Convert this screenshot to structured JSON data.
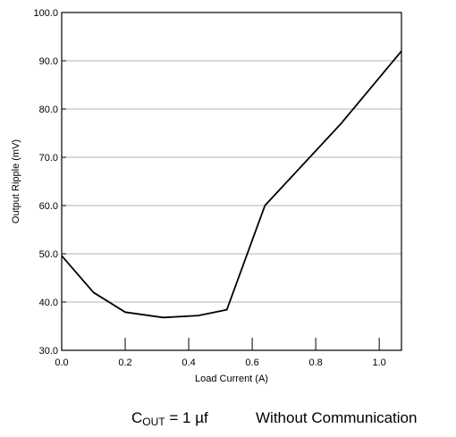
{
  "chart_data": {
    "type": "line",
    "title": "",
    "xlabel": "Load Current (A)",
    "ylabel": "Output Ripple (mV)",
    "xlim": [
      0.0,
      1.07
    ],
    "ylim": [
      30.0,
      100.0
    ],
    "x_ticks": [
      0.0,
      0.2,
      0.4,
      0.6,
      0.8,
      1.0
    ],
    "x_tick_labels": [
      "0.0",
      "0.2",
      "0.4",
      "0.6",
      "0.8",
      "1.0"
    ],
    "y_ticks": [
      30.0,
      40.0,
      50.0,
      60.0,
      70.0,
      80.0,
      90.0,
      100.0
    ],
    "y_tick_labels": [
      "30.0",
      "40.0",
      "50.0",
      "60.0",
      "70.0",
      "80.0",
      "90.0",
      "100.0"
    ],
    "grid": "horizontal",
    "series": [
      {
        "x": [
          0.0,
          0.1,
          0.2,
          0.32,
          0.43,
          0.52,
          0.64,
          0.88,
          1.07
        ],
        "y": [
          49.6,
          42.0,
          37.9,
          36.8,
          37.2,
          38.4,
          60.0,
          77.0,
          92.0
        ]
      }
    ],
    "annotations": {
      "condition_main": "C",
      "condition_sub": "OUT",
      "condition_value": "= 1 µf",
      "mode": "Without Communication"
    }
  }
}
